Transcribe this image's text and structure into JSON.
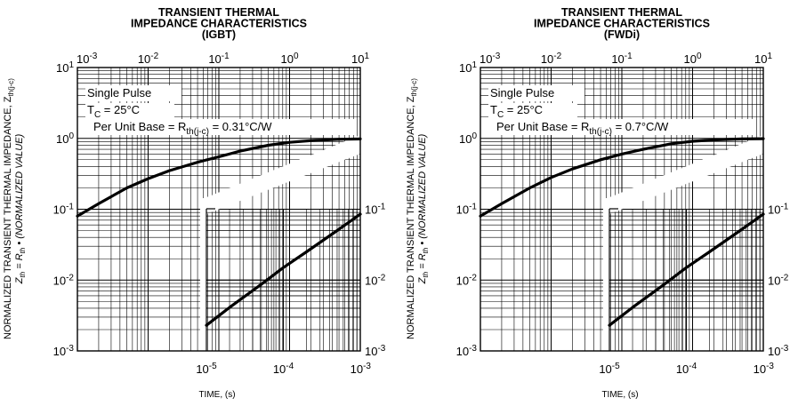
{
  "chart_data": [
    {
      "type": "line",
      "title": [
        "TRANSIENT THERMAL",
        "IMPEDANCE CHARACTERISTICS",
        "(IGBT)"
      ],
      "xlabel": "TIME, (s)",
      "ylabel": {
        "line1_main": "NORMALIZED TRANSIENT THERMAL IMPEDANCE, Z",
        "line1_sub": "th(j-c)",
        "line2": "Z",
        "line2_sub": "th",
        "line2_mid": " = R",
        "line2_sub2": "th",
        "line2_end": " • (NORMALIZED VALUE)"
      },
      "x_scale": "log",
      "y_scale": "log",
      "upper_xlim": [
        0.001,
        10
      ],
      "upper_x_ticks": [
        {
          "base": "10",
          "exp": "-3"
        },
        {
          "base": "10",
          "exp": "-2"
        },
        {
          "base": "10",
          "exp": "-1"
        },
        {
          "base": "10",
          "exp": "0"
        },
        {
          "base": "10",
          "exp": "1"
        }
      ],
      "lower_xlim": [
        1e-05,
        0.001
      ],
      "lower_x_ticks": [
        {
          "base": "10",
          "exp": "-5"
        },
        {
          "base": "10",
          "exp": "-4"
        },
        {
          "base": "10",
          "exp": "-3"
        }
      ],
      "ylim": [
        0.001,
        10
      ],
      "y_ticks_left": [
        {
          "base": "10",
          "exp": "1"
        },
        {
          "base": "10",
          "exp": "0"
        },
        {
          "base": "10",
          "exp": "-1"
        },
        {
          "base": "10",
          "exp": "-2"
        },
        {
          "base": "10",
          "exp": "-3"
        }
      ],
      "y_ticks_right": [
        {
          "base": "10",
          "exp": "-1"
        },
        {
          "base": "10",
          "exp": "-2"
        },
        {
          "base": "10",
          "exp": "-3"
        }
      ],
      "grid": true,
      "annotations": {
        "line1": "Single Pulse",
        "line2_pre": "T",
        "line2_sub": "C",
        "line2_post": " = 25°C",
        "line3_pre": "Per Unit Base = R",
        "line3_sub": "th(j-c)",
        "line3_post": " = 0.31°C/W"
      },
      "series": [
        {
          "axis": "upper",
          "x": [
            0.001,
            0.002,
            0.005,
            0.01,
            0.02,
            0.05,
            0.1,
            0.2,
            0.5,
            1,
            2,
            5,
            10
          ],
          "y": [
            0.08,
            0.12,
            0.2,
            0.27,
            0.35,
            0.46,
            0.55,
            0.66,
            0.8,
            0.88,
            0.93,
            0.97,
            0.98
          ]
        },
        {
          "axis": "lower",
          "x": [
            1e-05,
            2e-05,
            5e-05,
            0.0001,
            0.0002,
            0.0005,
            0.001
          ],
          "y": [
            0.0023,
            0.0041,
            0.0085,
            0.015,
            0.025,
            0.05,
            0.085
          ]
        }
      ]
    },
    {
      "type": "line",
      "title": [
        "TRANSIENT THERMAL",
        "IMPEDANCE CHARACTERISTICS",
        "(FWDi)"
      ],
      "xlabel": "TIME, (s)",
      "ylabel": {
        "line1_main": "NORMALIZED TRANSIENT THERMAL IMPEDANCE, Z",
        "line1_sub": "th(j-c)",
        "line2": "Z",
        "line2_sub": "th",
        "line2_mid": " = R",
        "line2_sub2": "th",
        "line2_end": " • (NORMALIZED VALUE)"
      },
      "x_scale": "log",
      "y_scale": "log",
      "upper_xlim": [
        0.001,
        10
      ],
      "upper_x_ticks": [
        {
          "base": "10",
          "exp": "-3"
        },
        {
          "base": "10",
          "exp": "-2"
        },
        {
          "base": "10",
          "exp": "-1"
        },
        {
          "base": "10",
          "exp": "0"
        },
        {
          "base": "10",
          "exp": "1"
        }
      ],
      "lower_xlim": [
        1e-05,
        0.001
      ],
      "lower_x_ticks": [
        {
          "base": "10",
          "exp": "-5"
        },
        {
          "base": "10",
          "exp": "-4"
        },
        {
          "base": "10",
          "exp": "-3"
        }
      ],
      "ylim": [
        0.001,
        10
      ],
      "y_ticks_left": [
        {
          "base": "10",
          "exp": "1"
        },
        {
          "base": "10",
          "exp": "0"
        },
        {
          "base": "10",
          "exp": "-1"
        },
        {
          "base": "10",
          "exp": "-2"
        },
        {
          "base": "10",
          "exp": "-3"
        }
      ],
      "y_ticks_right": [
        {
          "base": "10",
          "exp": "-1"
        },
        {
          "base": "10",
          "exp": "-2"
        },
        {
          "base": "10",
          "exp": "-3"
        }
      ],
      "grid": true,
      "annotations": {
        "line1": "Single Pulse",
        "line2_pre": "T",
        "line2_sub": "C",
        "line2_post": " = 25°C",
        "line3_pre": "Per Unit Base = R",
        "line3_sub": "th(j-c)",
        "line3_post": " = 0.7°C/W"
      },
      "series": [
        {
          "axis": "upper",
          "x": [
            0.001,
            0.002,
            0.005,
            0.01,
            0.02,
            0.05,
            0.1,
            0.2,
            0.5,
            1,
            2,
            5,
            10
          ],
          "y": [
            0.08,
            0.12,
            0.2,
            0.28,
            0.37,
            0.5,
            0.6,
            0.7,
            0.84,
            0.91,
            0.95,
            0.98,
            0.99
          ]
        },
        {
          "axis": "lower",
          "x": [
            1e-05,
            2e-05,
            5e-05,
            0.0001,
            0.0002,
            0.0005,
            0.001
          ],
          "y": [
            0.0023,
            0.0041,
            0.0085,
            0.015,
            0.025,
            0.05,
            0.085
          ]
        }
      ]
    }
  ]
}
